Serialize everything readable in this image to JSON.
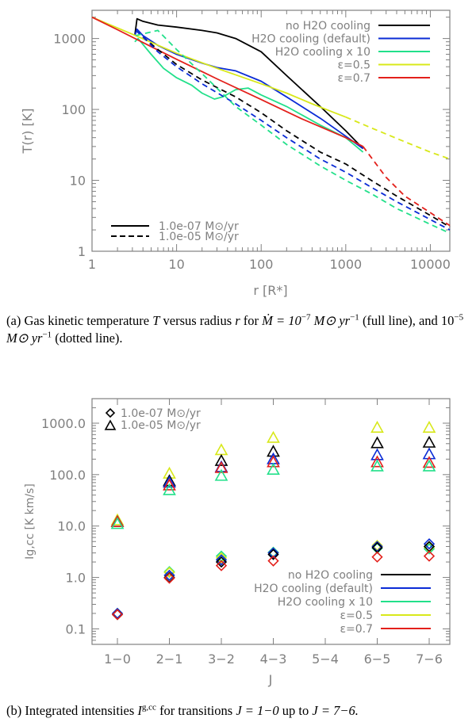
{
  "colors": {
    "no_h2o": "#000000",
    "h2o_default": "#0a2bd6",
    "h2o_x10": "#22e08a",
    "eps05": "#d8e81a",
    "eps07": "#e3201b",
    "axis": "#808080"
  },
  "chart_data": [
    {
      "type": "line",
      "x_scale": "log",
      "y_scale": "log",
      "xlim": [
        1,
        17000
      ],
      "ylim": [
        1,
        2500
      ],
      "xlabel": "r [R*]",
      "ylabel": "T(r) [K]",
      "xticks": [
        "1",
        "10",
        "100",
        "1000",
        "10000"
      ],
      "yticks": [
        "1",
        "10",
        "100",
        "1000"
      ],
      "legend_models": [
        {
          "key": "no_h2o",
          "label": "no H2O cooling"
        },
        {
          "key": "h2o_default",
          "label": "H2O cooling (default)"
        },
        {
          "key": "h2o_x10",
          "label": "H2O cooling x 10"
        },
        {
          "key": "eps05",
          "label": "ε=0.5"
        },
        {
          "key": "eps07",
          "label": "ε=0.7"
        }
      ],
      "legend_styles": [
        {
          "style": "solid",
          "label": "1.0e-07 M⊙/yr"
        },
        {
          "style": "dashed",
          "label": "1.0e-05 M⊙/yr"
        }
      ],
      "series": [
        {
          "model": "no_h2o",
          "style": "solid",
          "points": [
            [
              3.2,
              1100
            ],
            [
              3.4,
              1900
            ],
            [
              4,
              1750
            ],
            [
              6,
              1550
            ],
            [
              10,
              1450
            ],
            [
              20,
              1300
            ],
            [
              30,
              1200
            ],
            [
              50,
              1000
            ],
            [
              100,
              650
            ],
            [
              200,
              300
            ],
            [
              500,
              110
            ],
            [
              1000,
              50
            ],
            [
              1600,
              28
            ]
          ]
        },
        {
          "model": "h2o_default",
          "style": "solid",
          "points": [
            [
              3.2,
              1100
            ],
            [
              3.4,
              1350
            ],
            [
              4,
              1100
            ],
            [
              6,
              800
            ],
            [
              10,
              600
            ],
            [
              20,
              450
            ],
            [
              30,
              390
            ],
            [
              50,
              350
            ],
            [
              100,
              250
            ],
            [
              200,
              150
            ],
            [
              500,
              75
            ],
            [
              1000,
              42
            ],
            [
              1600,
              28
            ]
          ]
        },
        {
          "model": "h2o_x10",
          "style": "solid",
          "points": [
            [
              3.2,
              900
            ],
            [
              3.5,
              1000
            ],
            [
              5,
              600
            ],
            [
              7,
              380
            ],
            [
              10,
              280
            ],
            [
              15,
              220
            ],
            [
              20,
              170
            ],
            [
              28,
              140
            ],
            [
              35,
              150
            ],
            [
              50,
              190
            ],
            [
              70,
              200
            ],
            [
              100,
              160
            ],
            [
              200,
              110
            ],
            [
              500,
              60
            ],
            [
              1000,
              40
            ],
            [
              1600,
              25
            ]
          ]
        },
        {
          "model": "eps05",
          "style": "solid",
          "points": [
            [
              1,
              2000
            ],
            [
              3,
              1150
            ],
            [
              10,
              620
            ],
            [
              30,
              380
            ],
            [
              100,
              230
            ],
            [
              200,
              170
            ],
            [
              400,
              120
            ],
            [
              700,
              92
            ],
            [
              1000,
              78
            ]
          ]
        },
        {
          "model": "eps07",
          "style": "solid",
          "points": [
            [
              1,
              2000
            ],
            [
              2,
              1330
            ],
            [
              5,
              770
            ],
            [
              10,
              510
            ],
            [
              30,
              270
            ],
            [
              100,
              138
            ],
            [
              300,
              74
            ],
            [
              1000,
              40
            ],
            [
              1600,
              30
            ]
          ]
        },
        {
          "model": "no_h2o",
          "style": "dashed",
          "points": [
            [
              3.3,
              1300
            ],
            [
              4,
              1050
            ],
            [
              6,
              700
            ],
            [
              10,
              430
            ],
            [
              20,
              260
            ],
            [
              50,
              150
            ],
            [
              100,
              90
            ],
            [
              200,
              50
            ],
            [
              500,
              25
            ],
            [
              1000,
              17
            ],
            [
              2000,
              10
            ],
            [
              4000,
              6
            ],
            [
              10000,
              3.2
            ],
            [
              17000,
              2.2
            ]
          ]
        },
        {
          "model": "h2o_default",
          "style": "dashed",
          "points": [
            [
              3.3,
              1300
            ],
            [
              4,
              1050
            ],
            [
              6,
              650
            ],
            [
              10,
              400
            ],
            [
              20,
              230
            ],
            [
              50,
              120
            ],
            [
              100,
              70
            ],
            [
              200,
              40
            ],
            [
              500,
              20
            ],
            [
              1000,
              13
            ],
            [
              2000,
              8
            ],
            [
              4000,
              5
            ],
            [
              10000,
              2.8
            ],
            [
              17000,
              2.0
            ]
          ]
        },
        {
          "model": "h2o_x10",
          "style": "dashed",
          "points": [
            [
              3.3,
              1100
            ],
            [
              6,
              1300
            ],
            [
              10,
              700
            ],
            [
              20,
              320
            ],
            [
              50,
              110
            ],
            [
              100,
              60
            ],
            [
              200,
              32
            ],
            [
              500,
              16
            ],
            [
              1000,
              10
            ],
            [
              2000,
              6.5
            ],
            [
              4000,
              4
            ],
            [
              10000,
              2.4
            ],
            [
              17000,
              1.8
            ]
          ]
        },
        {
          "model": "eps05",
          "style": "dashed",
          "points": [
            [
              1000,
              78
            ],
            [
              2000,
              55
            ],
            [
              5000,
              35
            ],
            [
              10000,
              25
            ],
            [
              17000,
              20
            ]
          ]
        },
        {
          "model": "eps07",
          "style": "dashed",
          "points": [
            [
              1600,
              30
            ],
            [
              3000,
              11
            ],
            [
              5000,
              6
            ],
            [
              10000,
              3.5
            ],
            [
              17000,
              2.3
            ]
          ]
        }
      ]
    },
    {
      "type": "scatter",
      "y_scale": "log",
      "ylim": [
        0.05,
        3000
      ],
      "xlabel": "J",
      "ylabel": "Ig,cc [K km/s]",
      "categories": [
        "1−0",
        "2−1",
        "3−2",
        "4−3",
        "5−4",
        "6−5",
        "7−6"
      ],
      "yticks": [
        "0.1",
        "1.0",
        "10.0",
        "100.0",
        "1000.0"
      ],
      "legend_markers": [
        {
          "marker": "diamond",
          "label": "1.0e-07 M⊙/yr"
        },
        {
          "marker": "triangle",
          "label": "1.0e-05 M⊙/yr"
        }
      ],
      "legend_models": [
        {
          "key": "no_h2o",
          "label": "no H2O cooling"
        },
        {
          "key": "h2o_default",
          "label": "H2O cooling (default)"
        },
        {
          "key": "h2o_x10",
          "label": "H2O cooling x 10"
        },
        {
          "key": "eps05",
          "label": "ε=0.5"
        },
        {
          "key": "eps07",
          "label": "ε=0.7"
        }
      ],
      "series": [
        {
          "model": "eps05",
          "marker": "triangle",
          "values": [
            13,
            105,
            300,
            520,
            null,
            820,
            820
          ]
        },
        {
          "model": "no_h2o",
          "marker": "triangle",
          "values": [
            12,
            75,
            185,
            280,
            null,
            410,
            420
          ]
        },
        {
          "model": "h2o_default",
          "marker": "triangle",
          "values": [
            12,
            70,
            140,
            200,
            null,
            240,
            250
          ]
        },
        {
          "model": "eps07",
          "marker": "triangle",
          "values": [
            12,
            62,
            135,
            175,
            null,
            175,
            170
          ]
        },
        {
          "model": "h2o_x10",
          "marker": "triangle",
          "values": [
            11,
            50,
            95,
            125,
            null,
            145,
            145
          ]
        },
        {
          "model": "h2o_x10",
          "marker": "diamond",
          "values": [
            0.2,
            1.3,
            2.6,
            3.1,
            null,
            3.7,
            3.6
          ]
        },
        {
          "model": "eps05",
          "marker": "diamond",
          "values": [
            0.2,
            1.25,
            2.4,
            3.0,
            null,
            4.2,
            3.9
          ]
        },
        {
          "model": "h2o_default",
          "marker": "diamond",
          "values": [
            0.2,
            1.1,
            2.2,
            3.0,
            null,
            4.0,
            4.5
          ]
        },
        {
          "model": "no_h2o",
          "marker": "diamond",
          "values": [
            0.19,
            1.0,
            2.0,
            2.8,
            null,
            3.8,
            4.0
          ]
        },
        {
          "model": "eps07",
          "marker": "diamond",
          "values": [
            0.19,
            0.97,
            1.7,
            2.1,
            null,
            2.5,
            2.6
          ]
        }
      ]
    }
  ],
  "captions": {
    "a": {
      "tag": "(a)",
      "text1": "Gas kinetic temperature",
      "sym_T": "T",
      "text2": "versus radius",
      "sym_r": "r",
      "text3": "for",
      "eq1": "Ṁ = 10",
      "exp1": "−7",
      "unit1": "M⊙ yr",
      "exp_unit1": "−1",
      "text4": "(full line), and 10",
      "exp2": "−5",
      "unit2": "M⊙ yr",
      "exp_unit2": "−1",
      "text5": "(dotted line)."
    },
    "b": {
      "tag": "(b)",
      "text1": "Integrated intensities",
      "sym_I": "I",
      "sup_I": "g,cc",
      "text2": "for transitions",
      "eq1": "J = 1−0",
      "text3": "up to",
      "eq2": "J = 7−6."
    }
  }
}
